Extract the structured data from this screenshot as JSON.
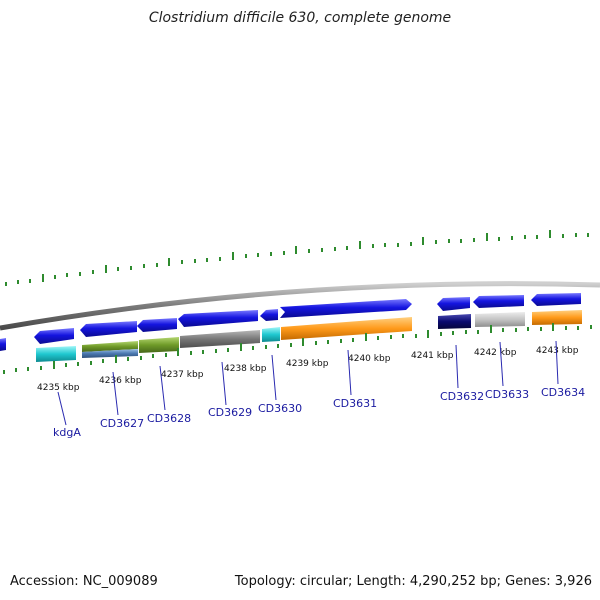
{
  "title": "Clostridium difficile 630, complete genome",
  "footer": {
    "accession": "Accession: NC_009089",
    "summary": "Topology: circular; Length: 4,290,252 bp; Genes: 3,926"
  },
  "scale_labels": [
    "4235 kbp",
    "4236 kbp",
    "4237 kbp",
    "4238 kbp",
    "4239 kbp",
    "4240 kbp",
    "4241 kbp",
    "4242 kbp",
    "4243 kbp"
  ],
  "gene_labels": [
    "kdgA",
    "CD3627",
    "CD3628",
    "CD3629",
    "CD3630",
    "CD3631",
    "CD3632",
    "CD3633",
    "CD3634"
  ],
  "colors": {
    "backbone": "#8a8a8a",
    "tick": "#2e8b2e",
    "gene_blue": "#1515e0",
    "leader_line": "#2a2ab0",
    "cyan": "#1fc8d0",
    "olive": "#6f9a28",
    "steel_blue": "#4a78b0",
    "gray": "#7a7a7a",
    "orange": "#ff9a1a",
    "navy": "#0a0a70",
    "light_gray": "#c4c4c4"
  }
}
